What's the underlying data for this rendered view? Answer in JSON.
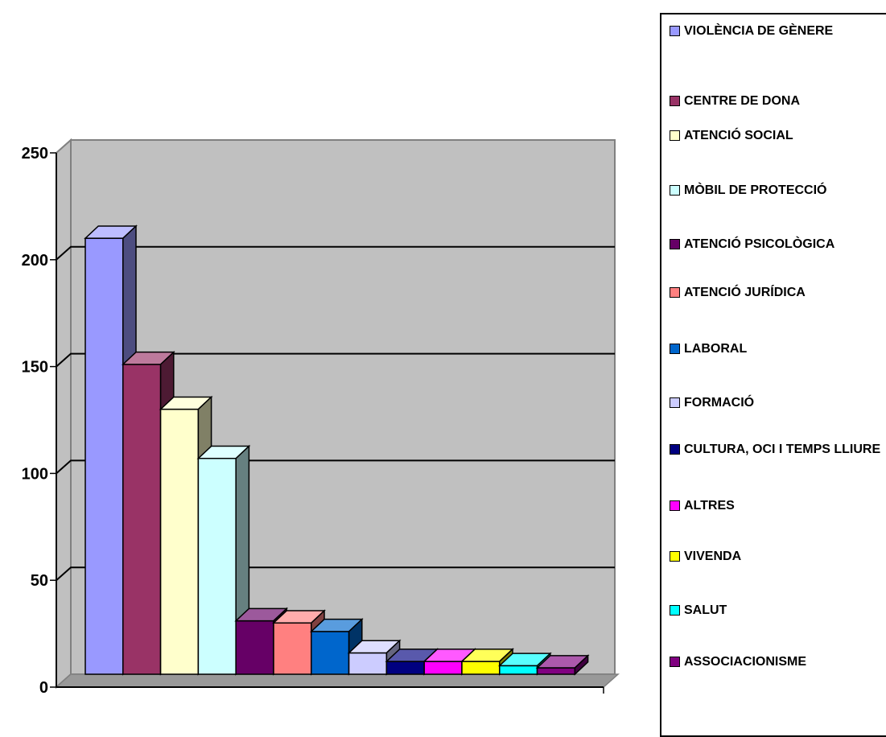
{
  "chart_data": {
    "type": "bar",
    "title": "",
    "xlabel": "",
    "ylabel": "",
    "ylim": [
      0,
      250
    ],
    "ytick_labels": [
      "0",
      "50",
      "100",
      "150",
      "200",
      "250"
    ],
    "grid": true,
    "legend_position": "right",
    "series": [
      {
        "name": "VIOLÈNCIA DE GÈNERE",
        "value": 204,
        "color": "#9999ff"
      },
      {
        "name": "CENTRE DE DONA",
        "value": 145,
        "color": "#993366"
      },
      {
        "name": "ATENCIÓ SOCIAL",
        "value": 124,
        "color": "#ffffcc"
      },
      {
        "name": "MÒBIL DE PROTECCIÓ",
        "value": 101,
        "color": "#ccffff"
      },
      {
        "name": "ATENCIÓ PSICOLÒGICA",
        "value": 25,
        "color": "#660066"
      },
      {
        "name": "ATENCIÓ JURÍDICA",
        "value": 24,
        "color": "#ff8080"
      },
      {
        "name": "LABORAL",
        "value": 20,
        "color": "#0066cc"
      },
      {
        "name": "FORMACIÓ",
        "value": 10,
        "color": "#ccccff"
      },
      {
        "name": "CULTURA, OCI I TEMPS LLIURE",
        "value": 6,
        "color": "#000080"
      },
      {
        "name": "ALTRES",
        "value": 6,
        "color": "#ff00ff"
      },
      {
        "name": "VIVENDA",
        "value": 6,
        "color": "#ffff00"
      },
      {
        "name": "SALUT",
        "value": 4,
        "color": "#00ffff"
      },
      {
        "name": "ASSOCIACIONISME",
        "value": 3,
        "color": "#800080"
      }
    ]
  }
}
